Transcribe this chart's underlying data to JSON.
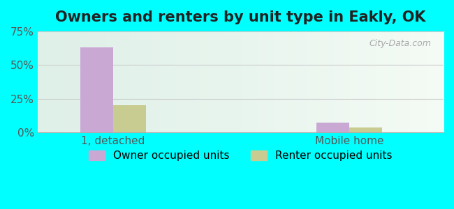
{
  "title": "Owners and renters by unit type in Eakly, OK",
  "categories": [
    "1, detached",
    "Mobile home"
  ],
  "owner_values": [
    63.0,
    7.0
  ],
  "renter_values": [
    20.0,
    3.5
  ],
  "owner_color": "#c9a8d4",
  "renter_color": "#c8cc90",
  "ylim": [
    0,
    75
  ],
  "yticks": [
    0,
    25,
    50,
    75
  ],
  "yticklabels": [
    "0%",
    "25%",
    "50%",
    "75%"
  ],
  "bar_width": 0.35,
  "title_fontsize": 15,
  "tick_fontsize": 11,
  "legend_fontsize": 11,
  "bg_color_left": "#f0f5e8",
  "bg_color_right": "#e0f5f0",
  "outer_bg": "#00ffff",
  "watermark": "City-Data.com",
  "group_positions": [
    1.0,
    3.5
  ]
}
